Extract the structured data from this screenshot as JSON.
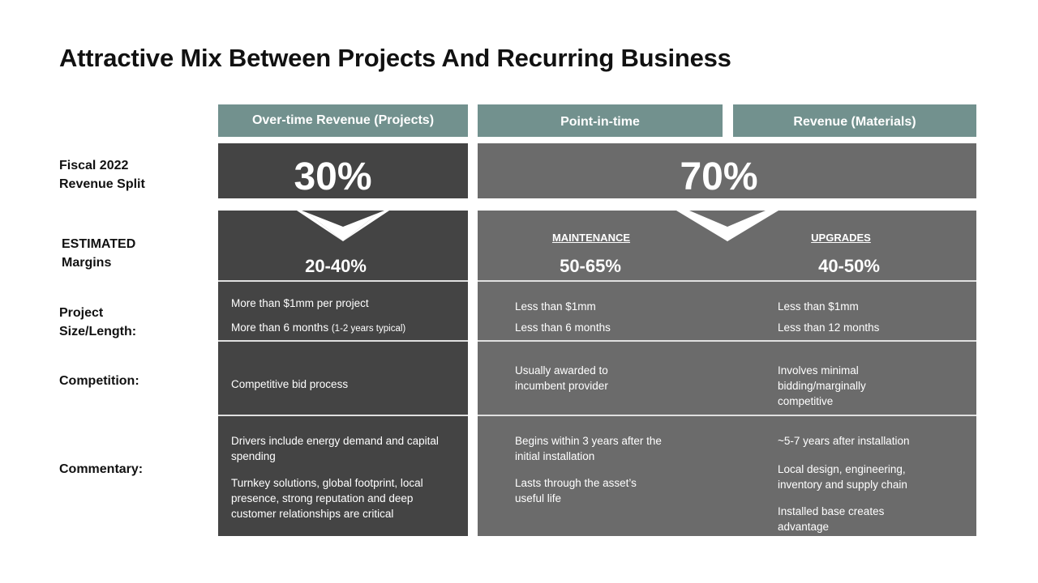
{
  "title": "Attractive Mix Between Projects And Recurring Business",
  "headers": {
    "col1": "Over-time Revenue (Projects)",
    "col2": "Point-in-time",
    "col3": "Revenue (Materials)"
  },
  "row_labels": {
    "split_line1": "Fiscal 2022",
    "split_line2": "Revenue Split",
    "margins_line1": "ESTIMATED",
    "margins_line2": "Margins",
    "size_line1": "Project",
    "size_line2": "Size/Length:",
    "competition": "Competition:",
    "commentary": "Commentary:"
  },
  "split": {
    "projects": "30%",
    "recurring": "70%"
  },
  "subheaders": {
    "maintenance": "MAINTENANCE",
    "upgrades": "UPGRADES"
  },
  "margins": {
    "projects": "20-40%",
    "maintenance": "50-65%",
    "upgrades": "40-50%"
  },
  "size": {
    "projects_1": "More than $1mm  per project",
    "projects_2": "More than 6 months",
    "projects_2_note": "(1-2 years typical)",
    "maintenance_1": "Less than $1mm",
    "maintenance_2": "Less than 6 months",
    "upgrades_1": "Less than $1mm",
    "upgrades_2": "Less than 12 months"
  },
  "competition": {
    "projects": "Competitive bid process",
    "maintenance_1": "Usually awarded to",
    "maintenance_2": "incumbent  provider",
    "upgrades_1": "Involves minimal",
    "upgrades_2": "bidding/marginally",
    "upgrades_3": "competitive"
  },
  "commentary": {
    "projects_a1": "Drivers include energy demand and  capital",
    "projects_a2": "spending",
    "projects_b1": "Turnkey  solutions, global footprint,  local",
    "projects_b2": "presence, strong reputation  and deep",
    "projects_b3": "customer relationships  are critical",
    "maintenance_a1": "Begins within 3 years after  the",
    "maintenance_a2": "initial installation",
    "maintenance_b1": "Lasts through the asset’s",
    "maintenance_b2": "useful life",
    "upgrades_a1": "~5-7 years after installation",
    "upgrades_b1": "Local design, engineering,",
    "upgrades_b2": "inventory and supply chain",
    "upgrades_c1": "Installed base creates",
    "upgrades_c2": "advantage"
  }
}
